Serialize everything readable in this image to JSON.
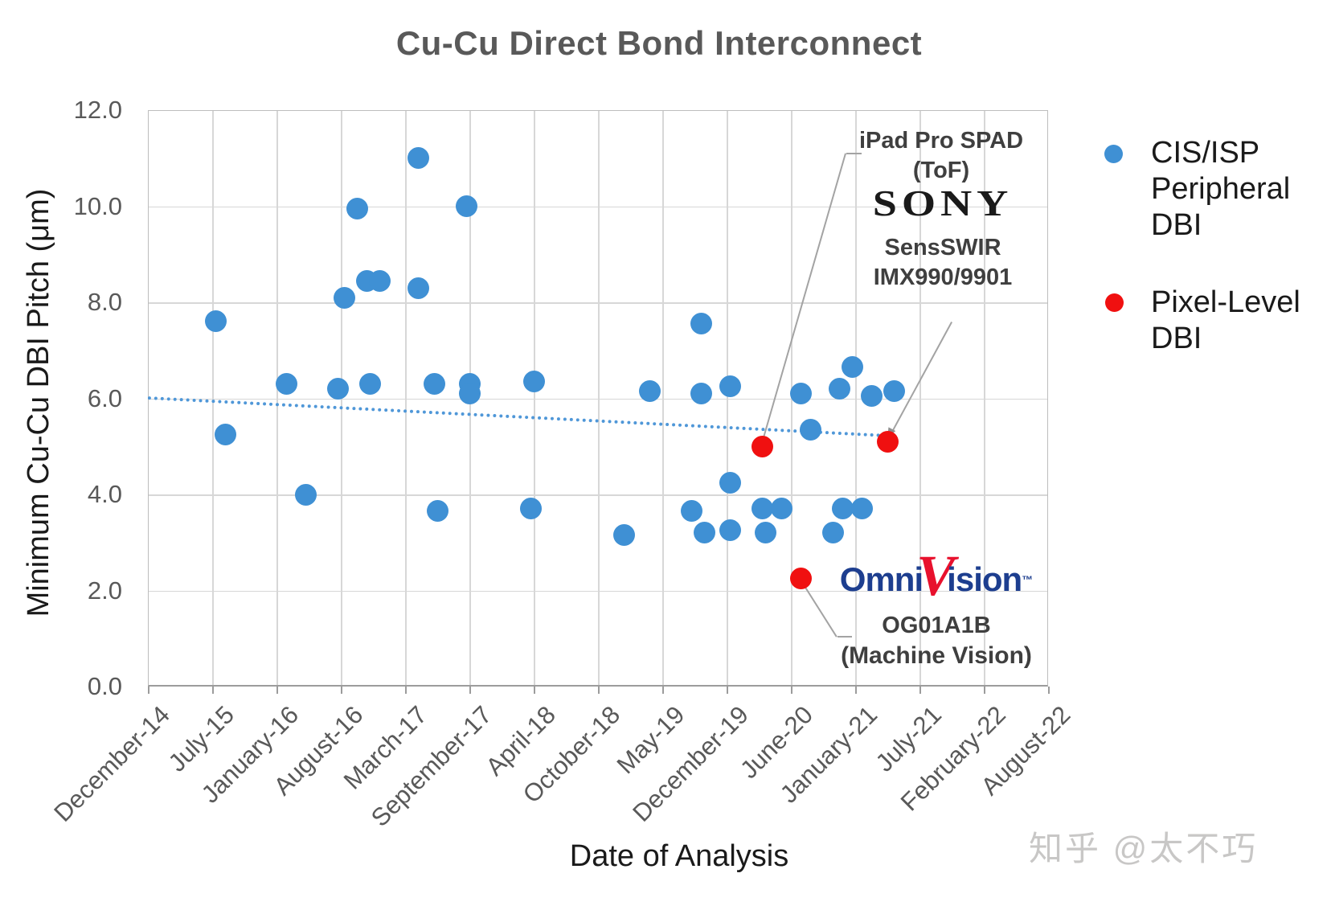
{
  "title": "Cu-Cu Direct Bond Interconnect",
  "watermark": "知乎 @太不巧",
  "legend": {
    "items": [
      {
        "label": "CIS/ISP\nPeripheral\nDBI",
        "color": "#3f90d4"
      },
      {
        "label": "Pixel-Level\nDBI",
        "color": "#f01010"
      }
    ]
  },
  "annotations": {
    "ipad_line1": "iPad Pro SPAD",
    "ipad_line2": "(ToF)",
    "sony_logo": "SONY",
    "sony_line1": "SensSWIR",
    "sony_line2": "IMX990/9901",
    "omni_logo_left": "Omni",
    "omni_logo_v": "V",
    "omni_logo_right": "ision",
    "omni_tm": "™",
    "omni_line1": "OG01A1B",
    "omni_line2": "(Machine Vision)"
  },
  "chart_data": {
    "type": "scatter",
    "title": "Cu-Cu Direct Bond Interconnect",
    "xlabel": "Date of Analysis",
    "ylabel": "Minimum Cu-Cu DBI Pitch (μm)",
    "x_tick_labels": [
      "December-14",
      "July-15",
      "January-16",
      "August-16",
      "March-17",
      "September-17",
      "April-18",
      "October-18",
      "May-19",
      "December-19",
      "June-20",
      "January-21",
      "July-21",
      "February-22",
      "August-22"
    ],
    "x_note": "x values are fractional tick indices (0 = December-14 ... 14 = August-22)",
    "ylim": [
      0,
      12
    ],
    "y_ticks": [
      0,
      2,
      4,
      6,
      8,
      10,
      12
    ],
    "grid": true,
    "legend_position": "right",
    "series": [
      {
        "name": "CIS/ISP Peripheral DBI",
        "color": "#3f90d4",
        "marker": "circle",
        "points": [
          [
            1.05,
            7.6
          ],
          [
            1.2,
            5.25
          ],
          [
            2.15,
            6.3
          ],
          [
            2.45,
            4.0
          ],
          [
            2.95,
            6.2
          ],
          [
            3.05,
            8.1
          ],
          [
            3.25,
            9.95
          ],
          [
            3.4,
            8.45
          ],
          [
            3.6,
            8.45
          ],
          [
            3.45,
            6.3
          ],
          [
            4.2,
            11.0
          ],
          [
            4.2,
            8.3
          ],
          [
            4.45,
            6.3
          ],
          [
            4.5,
            3.65
          ],
          [
            4.95,
            10.0
          ],
          [
            5.0,
            6.3
          ],
          [
            5.0,
            6.1
          ],
          [
            6.0,
            6.35
          ],
          [
            5.95,
            3.7
          ],
          [
            7.4,
            3.15
          ],
          [
            7.8,
            6.15
          ],
          [
            8.6,
            7.55
          ],
          [
            8.6,
            6.1
          ],
          [
            8.45,
            3.65
          ],
          [
            8.65,
            3.2
          ],
          [
            9.05,
            6.25
          ],
          [
            9.05,
            4.25
          ],
          [
            9.05,
            3.25
          ],
          [
            9.55,
            3.7
          ],
          [
            9.85,
            3.7
          ],
          [
            9.6,
            3.2
          ],
          [
            10.15,
            6.1
          ],
          [
            10.3,
            5.35
          ],
          [
            10.75,
            6.2
          ],
          [
            10.95,
            6.65
          ],
          [
            11.25,
            6.05
          ],
          [
            11.6,
            6.15
          ],
          [
            10.8,
            3.7
          ],
          [
            11.1,
            3.7
          ],
          [
            10.65,
            3.2
          ]
        ]
      },
      {
        "name": "Pixel-Level DBI",
        "color": "#f01010",
        "marker": "circle",
        "points": [
          [
            9.55,
            5.0
          ],
          [
            11.5,
            5.1
          ],
          [
            10.15,
            2.25
          ]
        ],
        "point_labels": [
          "iPad Pro SPAD (ToF)",
          "Sony SensSWIR IMX990/9901",
          "OmniVision OG01A1B (Machine Vision)"
        ]
      }
    ],
    "trendline": {
      "series": "CIS/ISP Peripheral DBI",
      "style": "dotted",
      "color": "#4f97d8",
      "from": [
        0,
        6.05
      ],
      "to": [
        11.4,
        5.27
      ]
    }
  }
}
